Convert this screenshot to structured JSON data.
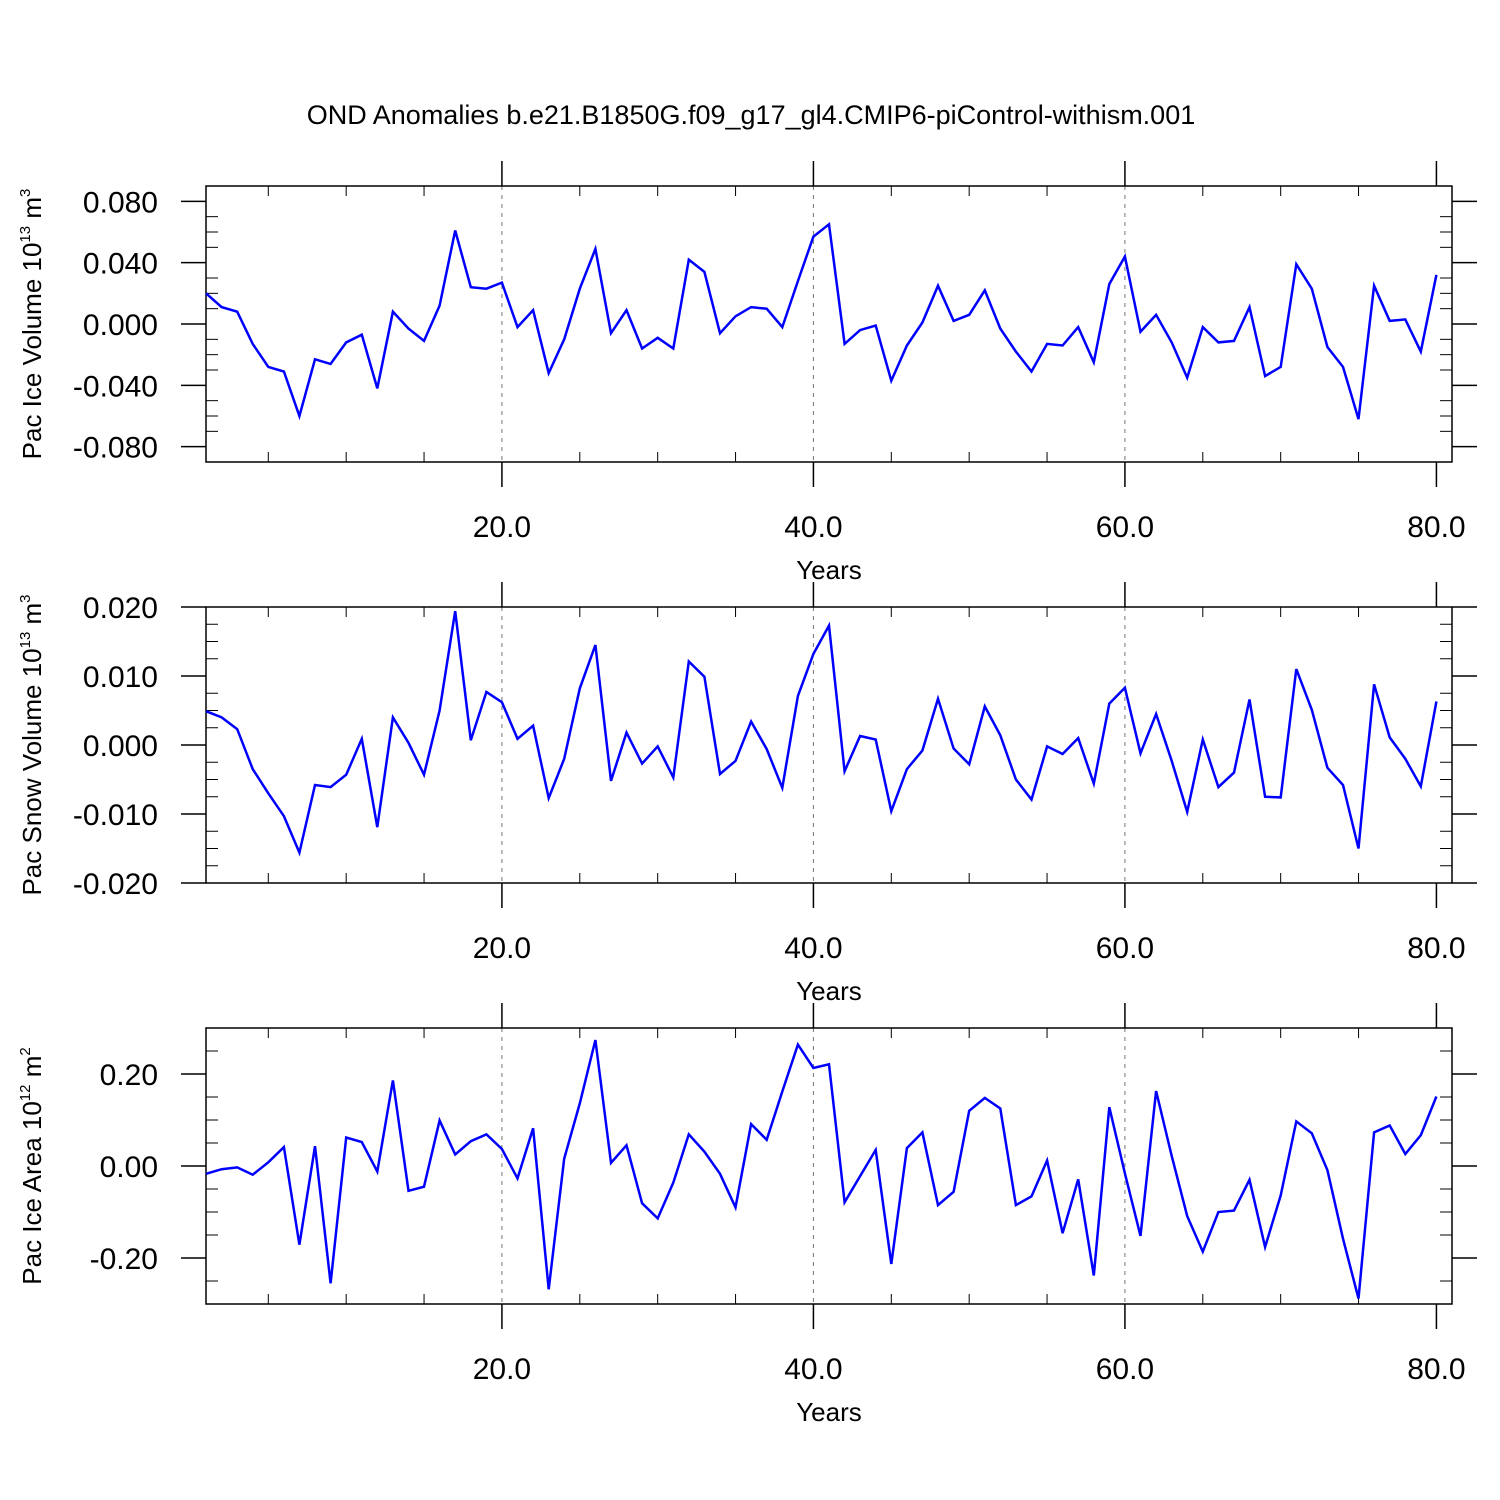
{
  "figure_title": "OND Anomalies b.e21.B1850G.f09_g17_gl4.CMIP6-piControl-withism.001",
  "colors": {
    "line": "#0000ff",
    "axis": "#000000",
    "gridline": "#777777"
  },
  "chart_data": [
    {
      "type": "line",
      "title": "",
      "xlabel": "Years",
      "ylabel": {
        "text": "Pac Ice Volume 10",
        "sup": "13",
        "unit": " m",
        "unit_sup": "3"
      },
      "xlim": [
        1,
        81
      ],
      "ylim": [
        -0.09,
        0.09
      ],
      "xticks": [
        20,
        40,
        60,
        80
      ],
      "xtick_labels": [
        "20.0",
        "40.0",
        "60.0",
        "80.0"
      ],
      "yticks": [
        0.08,
        0.04,
        0.0,
        -0.04,
        -0.08
      ],
      "ytick_labels": [
        "0.080",
        "0.040",
        "0.000",
        "-0.040",
        "-0.080"
      ],
      "vertical_gridlines": [
        20,
        40,
        60
      ],
      "series": [
        {
          "x_start": 1,
          "values": [
            0.02,
            0.011,
            0.008,
            -0.013,
            -0.028,
            -0.031,
            -0.06,
            -0.023,
            -0.026,
            -0.012,
            -0.007,
            -0.042,
            0.008,
            -0.003,
            -0.011,
            0.012,
            0.061,
            0.024,
            0.023,
            0.027,
            -0.002,
            0.009,
            -0.032,
            -0.01,
            0.023,
            0.049,
            -0.006,
            0.009,
            -0.016,
            -0.009,
            -0.016,
            0.042,
            0.034,
            -0.006,
            0.005,
            0.011,
            0.01,
            -0.002,
            0.028,
            0.057,
            0.065,
            -0.013,
            -0.004,
            -0.001,
            -0.037,
            -0.014,
            0.001,
            0.025,
            0.002,
            0.006,
            0.022,
            -0.003,
            -0.018,
            -0.031,
            -0.013,
            -0.014,
            -0.002,
            -0.025,
            0.026,
            0.044,
            -0.005,
            0.006,
            -0.012,
            -0.035,
            -0.002,
            -0.012,
            -0.011,
            0.011,
            -0.034,
            -0.028,
            0.039,
            0.023,
            -0.015,
            -0.028,
            -0.062,
            0.025,
            0.002,
            0.003,
            -0.018,
            0.032
          ]
        }
      ]
    },
    {
      "type": "line",
      "title": "",
      "xlabel": "Years",
      "ylabel": {
        "text": "Pac Snow Volume 10",
        "sup": "13",
        "unit": " m",
        "unit_sup": "3"
      },
      "xlim": [
        1,
        81
      ],
      "ylim": [
        -0.02,
        0.02
      ],
      "xticks": [
        20,
        40,
        60,
        80
      ],
      "xtick_labels": [
        "20.0",
        "40.0",
        "60.0",
        "80.0"
      ],
      "yticks": [
        0.02,
        0.01,
        0.0,
        -0.01,
        -0.02
      ],
      "ytick_labels": [
        "0.020",
        "0.010",
        "0.000",
        "-0.010",
        "-0.020"
      ],
      "vertical_gridlines": [
        20,
        40,
        60
      ],
      "series": [
        {
          "x_start": 1,
          "values": [
            0.0049,
            0.004,
            0.0023,
            -0.0035,
            -0.007,
            -0.0103,
            -0.0156,
            -0.0058,
            -0.0061,
            -0.0043,
            0.0009,
            -0.0119,
            0.004,
            0.0003,
            -0.0043,
            0.005,
            0.0194,
            0.0007,
            0.0077,
            0.0062,
            0.0009,
            0.0028,
            -0.0077,
            -0.002,
            0.0082,
            0.0145,
            -0.0052,
            0.0018,
            -0.0027,
            -0.0002,
            -0.0047,
            0.0121,
            0.0099,
            -0.0042,
            -0.0023,
            0.0034,
            -0.0006,
            -0.0062,
            0.0071,
            0.0132,
            0.0173,
            -0.0038,
            0.0013,
            0.0008,
            -0.0096,
            -0.0035,
            -0.0008,
            0.0067,
            -0.0005,
            -0.0028,
            0.0056,
            0.0014,
            -0.005,
            -0.0079,
            -0.0002,
            -0.0013,
            0.001,
            -0.0056,
            0.006,
            0.0083,
            -0.0012,
            0.0045,
            -0.0023,
            -0.0097,
            0.0008,
            -0.0061,
            -0.004,
            0.0066,
            -0.0075,
            -0.0076,
            0.011,
            0.0051,
            -0.0033,
            -0.0058,
            -0.015,
            0.0088,
            0.0011,
            -0.002,
            -0.006,
            0.0063
          ]
        }
      ]
    },
    {
      "type": "line",
      "title": "",
      "xlabel": "Years",
      "ylabel": {
        "text": "Pac Ice Area 10",
        "sup": "12",
        "unit": " m",
        "unit_sup": "2"
      },
      "xlim": [
        1,
        81
      ],
      "ylim": [
        -0.3,
        0.3
      ],
      "xticks": [
        20,
        40,
        60,
        80
      ],
      "xtick_labels": [
        "20.0",
        "40.0",
        "60.0",
        "80.0"
      ],
      "yticks": [
        0.2,
        0.0,
        -0.2
      ],
      "ytick_labels": [
        "0.20",
        "0.00",
        "-0.20"
      ],
      "vertical_gridlines": [
        20,
        40,
        60
      ],
      "series": [
        {
          "x_start": 1,
          "values": [
            -0.017,
            -0.007,
            -0.003,
            -0.019,
            0.008,
            0.041,
            -0.171,
            0.043,
            -0.255,
            0.062,
            0.052,
            -0.012,
            0.186,
            -0.054,
            -0.045,
            0.099,
            0.025,
            0.054,
            0.069,
            0.037,
            -0.027,
            0.082,
            -0.268,
            0.016,
            0.136,
            0.274,
            0.007,
            0.045,
            -0.081,
            -0.114,
            -0.036,
            0.069,
            0.031,
            -0.017,
            -0.09,
            0.091,
            0.057,
            0.162,
            0.264,
            0.213,
            0.221,
            -0.079,
            -0.022,
            0.035,
            -0.213,
            0.039,
            0.073,
            -0.085,
            -0.056,
            0.12,
            0.148,
            0.125,
            -0.085,
            -0.066,
            0.012,
            -0.146,
            -0.029,
            -0.238,
            0.128,
            -0.016,
            -0.152,
            0.163,
            0.022,
            -0.109,
            -0.186,
            -0.1,
            -0.097,
            -0.03,
            -0.176,
            -0.064,
            0.097,
            0.071,
            -0.009,
            -0.158,
            -0.288,
            0.073,
            0.088,
            0.026,
            0.067,
            0.151
          ]
        }
      ]
    }
  ]
}
